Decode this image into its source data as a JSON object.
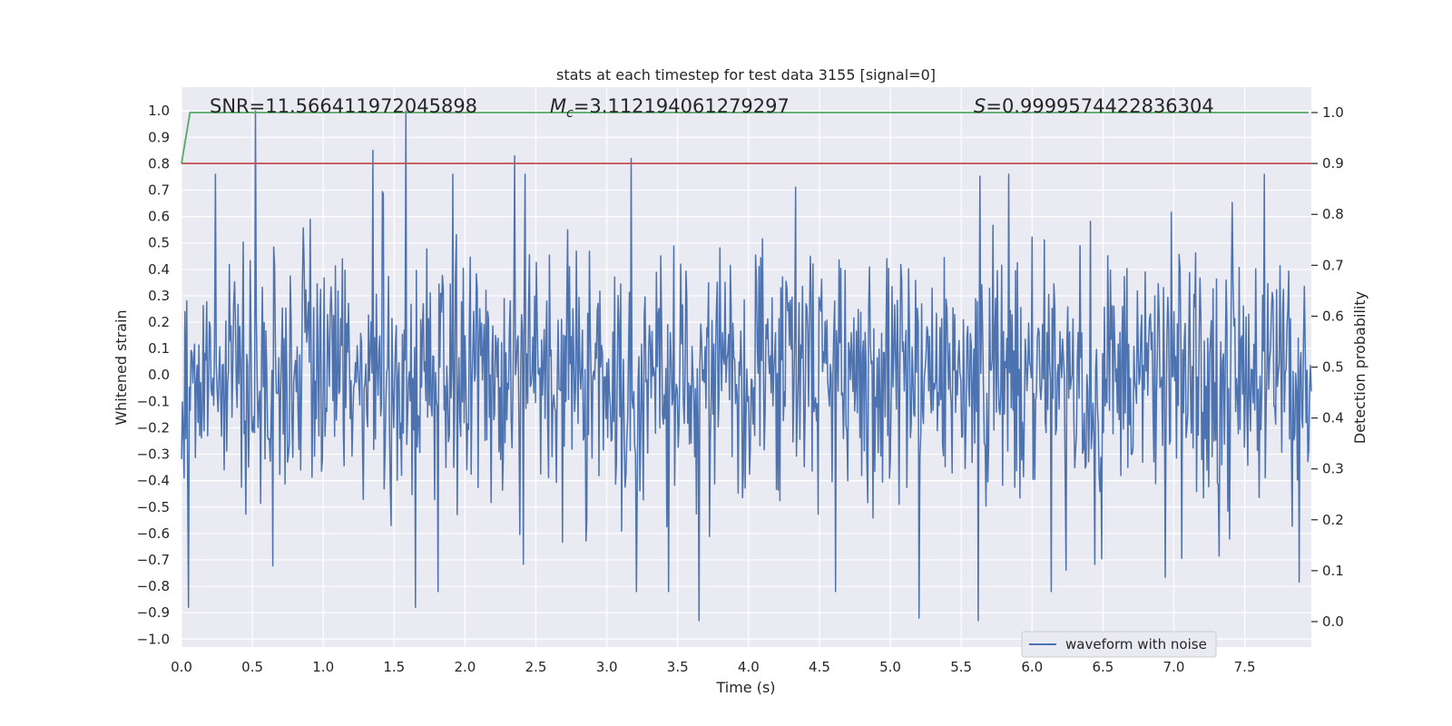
{
  "chart_data": {
    "type": "line",
    "title": "stats at each timestep for test data 3155 [signal=0]",
    "xlabel": "Time (s)",
    "ylabel": "Whitened strain",
    "y2label": "Detection probability",
    "xlim": [
      0.0,
      7.97
    ],
    "ylim": [
      -1.03,
      1.09
    ],
    "y2lim": [
      -0.05,
      1.05
    ],
    "xticks": [
      "0.0",
      "0.5",
      "1.0",
      "1.5",
      "2.0",
      "2.5",
      "3.0",
      "3.5",
      "4.0",
      "4.5",
      "5.0",
      "5.5",
      "6.0",
      "6.5",
      "7.0",
      "7.5"
    ],
    "yticks": [
      "1.0",
      "0.9",
      "0.8",
      "0.7",
      "0.6",
      "0.5",
      "0.4",
      "0.3",
      "0.2",
      "0.1",
      "0.0",
      "−0.1",
      "−0.2",
      "−0.3",
      "−0.4",
      "−0.5",
      "−0.6",
      "−0.7",
      "−0.8",
      "−0.9",
      "−1.0"
    ],
    "y2ticks": [
      "1.0",
      "0.9",
      "0.8",
      "0.7",
      "0.6",
      "0.5",
      "0.4",
      "0.3",
      "0.2",
      "0.1",
      "0.0"
    ],
    "annotations": {
      "snr": "SNR=11.566411972045898",
      "mc_symbol": "M",
      "mc_sub": "c",
      "mc_value": "=3.112194061279297",
      "s_symbol": "S",
      "s_value": "=0.9999574422836304"
    },
    "series": [
      {
        "name": "waveform with noise",
        "color": "#4c72b0",
        "axis": "left",
        "note": "dense whitened-strain noise, amplitude mostly within ±0.6",
        "x_range": [
          0.0,
          7.97
        ],
        "peaks": [
          {
            "x": 0.52,
            "y": 1.0
          },
          {
            "x": 1.35,
            "y": 0.85
          },
          {
            "x": 1.58,
            "y": 1.0
          },
          {
            "x": 1.65,
            "y": -0.88
          },
          {
            "x": 2.35,
            "y": 0.83
          },
          {
            "x": 3.17,
            "y": 0.82
          },
          {
            "x": 3.65,
            "y": -0.93
          },
          {
            "x": 5.2,
            "y": -0.92
          },
          {
            "x": 5.62,
            "y": -0.93
          },
          {
            "x": 0.05,
            "y": -0.88
          }
        ]
      },
      {
        "name": "detection probability",
        "color": "#55a868",
        "axis": "right",
        "x": [
          0.0,
          0.06,
          0.1,
          7.95
        ],
        "y": [
          0.9,
          1.0,
          1.0,
          1.0
        ]
      },
      {
        "name": "threshold",
        "color": "#c44e52",
        "axis": "right",
        "x": [
          0.0,
          7.97
        ],
        "y": [
          0.9,
          0.9
        ]
      }
    ],
    "legend": {
      "position": "lower-right",
      "entries": [
        "waveform with noise"
      ]
    }
  }
}
